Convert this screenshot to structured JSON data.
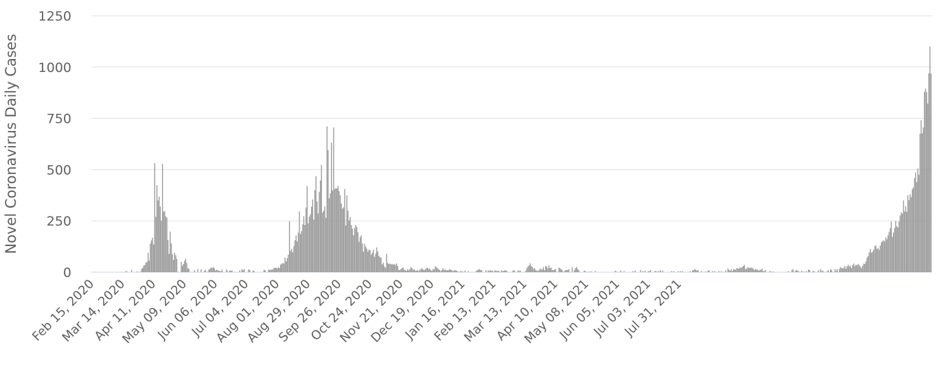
{
  "chart_data": {
    "type": "bar",
    "ylabel": "Novel Coronavirus Daily Cases",
    "ylim": [
      0,
      1250
    ],
    "yticks": [
      "0",
      "250",
      "500",
      "750",
      "1000",
      "1250"
    ],
    "xlabels": [
      "Feb 15, 2020",
      "Mar 14, 2020",
      "Apr 11, 2020",
      "May 09, 2020",
      "Jun 06, 2020",
      "Jul 04, 2020",
      "Aug 01, 2020",
      "Aug 29, 2020",
      "Sep 26, 2020",
      "Oct 24, 2020",
      "Nov 21, 2020",
      "Dec 19, 2020",
      "Jan 16, 2021",
      "Feb 13, 2021",
      "Mar 13, 2021",
      "Apr 10, 2021",
      "May 08, 2021",
      "Jun 05, 2021",
      "Jul 03, 2021",
      "Jul 31, 2021"
    ],
    "grid": true,
    "color": "#999999",
    "series": [
      {
        "start_date": "Feb 15, 2020",
        "values": [
          0,
          0,
          0,
          0,
          0,
          0,
          0,
          0,
          0,
          0,
          0,
          0,
          0,
          0,
          0,
          0,
          0,
          0,
          0,
          0,
          0,
          0,
          0,
          0,
          0,
          0,
          0,
          1,
          0,
          0,
          0,
          6,
          2,
          0,
          0,
          0,
          11,
          0,
          0,
          0,
          0,
          4,
          0,
          1,
          0,
          16,
          20,
          32,
          35,
          47,
          50,
          95,
          56,
          140,
          155,
          168,
          135,
          532,
          270,
          424,
          350,
          368,
          320,
          250,
          527,
          295,
          298,
          272,
          266,
          157,
          89,
          198,
          140,
          88,
          60,
          95,
          83,
          65,
          0,
          0,
          0,
          50,
          31,
          40,
          55,
          66,
          45,
          20,
          16,
          0,
          0,
          0,
          0,
          10,
          0,
          0,
          15,
          0,
          0,
          14,
          0,
          0,
          6,
          12,
          0,
          2,
          13,
          16,
          23,
          20,
          25,
          19,
          8,
          12,
          10,
          7,
          5,
          4,
          13,
          0,
          0,
          0,
          14,
          5,
          0,
          9,
          6,
          8,
          0,
          2,
          0,
          0,
          0,
          0,
          9,
          0,
          15,
          10,
          15,
          0,
          0,
          0,
          14,
          11,
          0,
          0,
          8,
          5,
          0,
          0,
          0,
          0,
          0,
          0,
          0,
          1,
          12,
          9,
          0,
          0,
          13,
          10,
          13,
          12,
          14,
          21,
          22,
          20,
          19,
          25,
          20,
          37,
          41,
          45,
          42,
          71,
          52,
          68,
          85,
          248,
          103,
          114,
          96,
          128,
          156,
          179,
          150,
          193,
          296,
          186,
          200,
          233,
          273,
          230,
          315,
          420,
          238,
          271,
          283,
          320,
          354,
          256,
          400,
          468,
          345,
          286,
          392,
          447,
          523,
          290,
          300,
          320,
          265,
          711,
          595,
          360,
          385,
          631,
          398,
          705,
          405,
          410,
          408,
          420,
          395,
          375,
          335,
          310,
          316,
          405,
          228,
          375,
          300,
          252,
          268,
          230,
          212,
          180,
          215,
          230,
          220,
          195,
          148,
          170,
          180,
          140,
          100,
          138,
          125,
          115,
          100,
          110,
          108,
          85,
          95,
          110,
          75,
          90,
          120,
          100,
          80,
          74,
          70,
          38,
          46,
          28,
          22,
          90,
          45,
          40,
          42,
          38,
          40,
          36,
          40,
          35,
          43,
          30,
          10,
          11,
          15,
          20,
          22,
          11,
          10,
          7,
          15,
          9,
          15,
          25,
          20,
          11,
          15,
          8,
          7,
          10,
          5,
          11,
          15,
          20,
          13,
          10,
          14,
          20,
          22,
          15,
          18,
          10,
          7,
          15,
          14,
          28,
          25,
          20,
          15,
          10,
          5,
          10,
          20,
          10,
          14,
          10,
          9,
          10,
          15,
          12,
          10,
          5,
          8,
          10,
          8,
          5,
          2,
          0,
          6,
          3,
          3,
          0,
          8,
          0,
          0,
          5,
          0,
          0,
          0,
          0,
          0,
          0,
          5,
          10,
          12,
          15,
          11,
          10,
          0,
          0,
          0,
          10,
          0,
          9,
          5,
          10,
          6,
          8,
          0,
          8,
          8,
          5,
          8,
          3,
          0,
          10,
          5,
          6,
          10,
          8,
          5,
          0,
          0,
          0,
          0,
          5,
          10,
          6,
          0,
          0,
          9,
          5,
          8,
          0,
          0,
          0,
          0,
          6,
          20,
          28,
          33,
          43,
          30,
          25,
          15,
          20,
          10,
          8,
          5,
          10,
          18,
          12,
          15,
          25,
          10,
          30,
          27,
          18,
          33,
          20,
          22,
          10,
          10,
          12,
          15,
          0,
          0,
          22,
          20,
          13,
          12,
          0,
          5,
          10,
          10,
          12,
          14,
          0,
          0,
          25,
          0,
          10,
          20,
          25,
          15,
          10,
          0,
          0,
          0,
          0,
          8,
          5,
          0,
          0,
          3,
          0,
          5,
          0,
          0,
          0,
          5,
          0,
          0,
          0,
          0,
          0,
          0,
          0,
          0,
          0,
          0,
          0,
          0,
          0,
          0,
          0,
          0,
          0,
          7,
          4,
          0,
          0,
          0,
          8,
          0,
          0,
          5,
          0,
          0,
          0,
          0,
          0,
          0,
          0,
          5,
          0,
          8,
          0,
          0,
          0,
          0,
          10,
          0,
          5,
          0,
          8,
          0,
          0,
          5,
          5,
          10,
          0,
          0,
          0,
          6,
          5,
          0,
          5,
          3,
          10,
          0,
          8,
          0,
          0,
          0,
          0,
          0,
          0,
          0,
          5,
          0,
          5,
          0,
          0,
          0,
          5,
          0,
          5,
          0,
          5,
          0,
          0,
          0,
          0,
          0,
          0,
          5,
          0,
          9,
          10,
          15,
          12,
          8,
          10,
          0,
          0,
          5,
          0,
          0,
          0,
          4,
          0,
          7,
          10,
          0,
          0,
          5,
          0,
          5,
          0,
          0,
          0,
          5,
          0,
          5,
          0,
          0,
          0,
          9,
          0,
          18,
          12,
          7,
          14,
          5,
          15,
          13,
          12,
          20,
          18,
          17,
          24,
          20,
          26,
          30,
          35,
          15,
          18,
          25,
          20,
          21,
          23,
          21,
          17,
          10,
          15,
          14,
          12,
          8,
          10,
          13,
          17,
          5,
          5,
          10,
          0,
          0,
          0,
          5,
          3,
          0,
          3,
          0,
          0,
          0,
          0,
          0,
          0,
          0,
          0,
          0,
          0,
          0,
          2,
          0,
          5,
          0,
          0,
          10,
          15,
          0,
          5,
          11,
          8,
          5,
          0,
          0,
          8,
          0,
          3,
          0,
          5,
          0,
          13,
          10,
          0,
          0,
          5,
          5,
          0,
          0,
          0,
          10,
          0,
          15,
          5,
          8,
          0,
          0,
          0,
          5,
          10,
          0,
          15,
          10,
          0,
          0,
          15,
          5,
          15,
          0,
          15,
          25,
          20,
          18,
          22,
          30,
          16,
          29,
          36,
          28,
          32,
          20,
          35,
          42,
          30,
          37,
          33,
          40,
          35,
          28,
          19,
          31,
          42,
          40,
          52,
          70,
          79,
          96,
          113,
          95,
          99,
          110,
          126,
          131,
          113,
          118,
          109,
          130,
          145,
          152,
          155,
          150,
          170,
          160,
          179,
          196,
          214,
          247,
          172,
          194,
          216,
          250,
          224,
          218,
          247,
          276,
          292,
          285,
          350,
          296,
          322,
          294,
          375,
          351,
          380,
          366,
          405,
          413,
          459,
          487,
          439,
          506,
          475,
          675,
          741,
          677,
          705,
          880,
          895,
          877,
          822,
          970,
          1100,
          968
        ]
      }
    ]
  }
}
